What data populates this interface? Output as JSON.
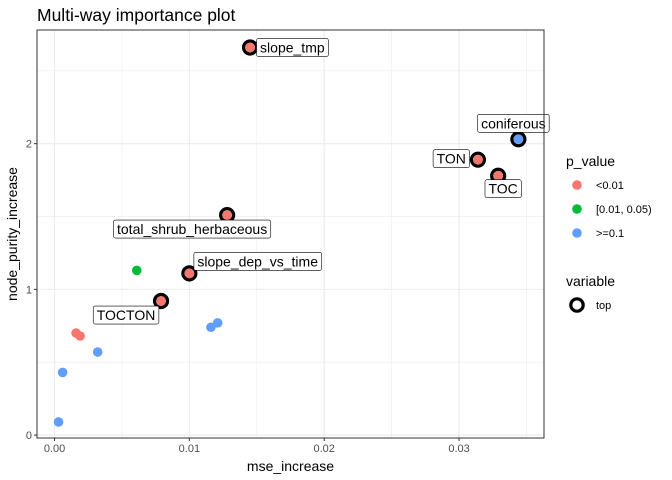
{
  "chart_data": {
    "type": "scatter",
    "title": "Multi-way importance plot",
    "xlabel": "mse_increase",
    "ylabel": "node_purity_increase",
    "xlim": [
      -0.0013,
      0.0363
    ],
    "ylim": [
      -0.02,
      2.78
    ],
    "x_ticks": [
      0.0,
      0.01,
      0.02,
      0.03
    ],
    "x_tick_labels": [
      "0.00",
      "0.01",
      "0.02",
      "0.03"
    ],
    "y_ticks": [
      0,
      1,
      2
    ],
    "y_tick_labels": [
      "0",
      "1",
      "2"
    ],
    "grid": true,
    "legend_position": "right",
    "legend": {
      "p_value": {
        "title": "p_value",
        "entries": [
          {
            "label": "<0.01",
            "color": "#F8766D"
          },
          {
            "label": "[0.01, 0.05)",
            "color": "#00BA38"
          },
          {
            "label": ">=0.1",
            "color": "#619CFF"
          }
        ]
      },
      "variable": {
        "title": "variable",
        "entries": [
          {
            "label": "top"
          }
        ]
      }
    },
    "points": [
      {
        "x": 0.0145,
        "y": 2.66,
        "p_value": "<0.01",
        "top": true,
        "label": "slope_tmp",
        "label_pos": "right"
      },
      {
        "x": 0.0344,
        "y": 2.03,
        "p_value": ">=0.1",
        "top": true,
        "label": "coniferous",
        "label_pos": "above"
      },
      {
        "x": 0.0314,
        "y": 1.89,
        "p_value": "<0.01",
        "top": true,
        "label": "TON",
        "label_pos": "left"
      },
      {
        "x": 0.0329,
        "y": 1.78,
        "p_value": "<0.01",
        "top": true,
        "label": "TOC",
        "label_pos": "below-right"
      },
      {
        "x": 0.0128,
        "y": 1.51,
        "p_value": "<0.01",
        "top": true,
        "label": "total_shrub_herbaceous",
        "label_pos": "below-left"
      },
      {
        "x": 0.01,
        "y": 1.11,
        "p_value": "<0.01",
        "top": true,
        "label": "slope_dep_vs_time",
        "label_pos": "above-right"
      },
      {
        "x": 0.0079,
        "y": 0.92,
        "p_value": "<0.01",
        "top": true,
        "label": "TOCTON",
        "label_pos": "below-left"
      },
      {
        "x": 0.0061,
        "y": 1.13,
        "p_value": "[0.01, 0.05)",
        "top": false
      },
      {
        "x": 0.0016,
        "y": 0.7,
        "p_value": "<0.01",
        "top": false
      },
      {
        "x": 0.0019,
        "y": 0.68,
        "p_value": "<0.01",
        "top": false
      },
      {
        "x": 0.0032,
        "y": 0.57,
        "p_value": ">=0.1",
        "top": false
      },
      {
        "x": 0.0006,
        "y": 0.43,
        "p_value": ">=0.1",
        "top": false
      },
      {
        "x": 0.0003,
        "y": 0.09,
        "p_value": ">=0.1",
        "top": false
      },
      {
        "x": 0.0116,
        "y": 0.74,
        "p_value": ">=0.1",
        "top": false
      },
      {
        "x": 0.0121,
        "y": 0.77,
        "p_value": ">=0.1",
        "top": false
      }
    ]
  }
}
